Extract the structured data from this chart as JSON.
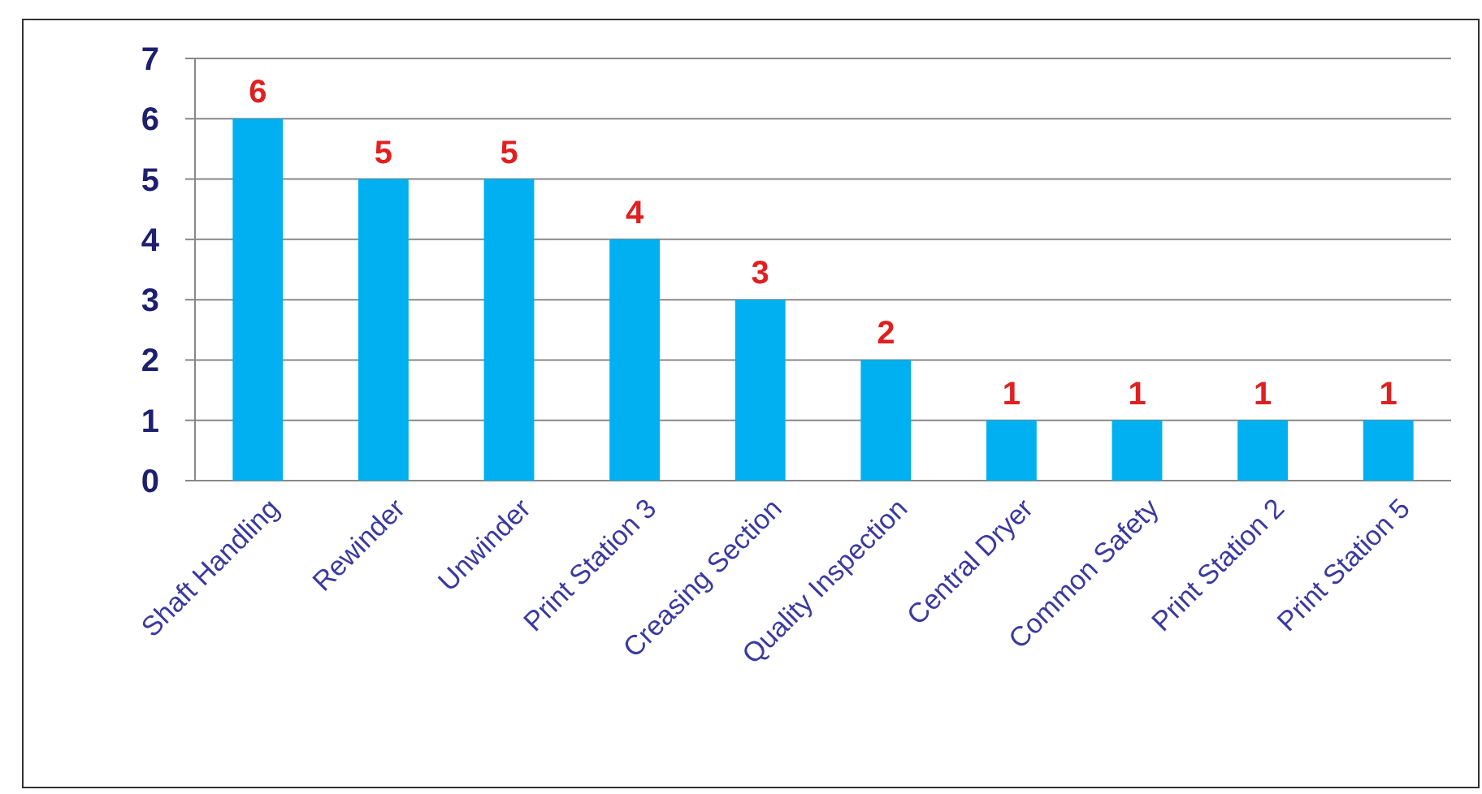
{
  "chart_data": {
    "type": "bar",
    "categories": [
      "Shaft Handling",
      "Rewinder",
      "Unwinder",
      "Print Station 3",
      "Creasing Section",
      "Quality Inspection",
      "Central Dryer",
      "Common Safety",
      "Print Station 2",
      "Print Station 5"
    ],
    "values": [
      6,
      5,
      5,
      4,
      3,
      2,
      1,
      1,
      1,
      1
    ],
    "color": "#00b0f0",
    "ylim": [
      0,
      7
    ],
    "yticks": [
      0,
      1,
      2,
      3,
      4,
      5,
      6,
      7
    ],
    "grid": "y",
    "data_labels": true
  }
}
